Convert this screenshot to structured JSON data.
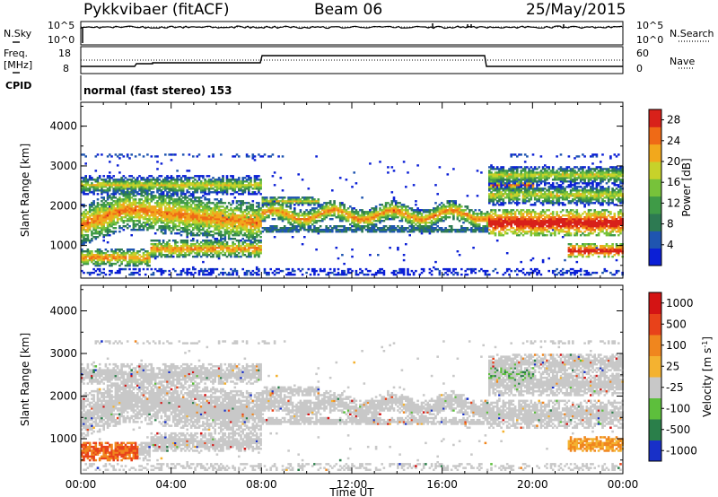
{
  "header": {
    "radar": "Pykkvibaer (fitACF)",
    "beam": "Beam 06",
    "date": "25/May/2015"
  },
  "noise_panel": {
    "left_label": "N.Sky",
    "left_ticks": [
      "10^5",
      "10^0"
    ],
    "right_label": "N.Search",
    "right_ticks": [
      "10^5",
      "10^0"
    ]
  },
  "freq_panel": {
    "left_label_line1": "Freq.",
    "left_label_line2": "[MHz]",
    "left_ticks": [
      "18",
      "8"
    ],
    "right_label": "Nave",
    "right_ticks": [
      "60",
      "0"
    ]
  },
  "cpid_panel": {
    "label": "CPID",
    "text": "normal (fast stereo) 153"
  },
  "colors": {
    "power_scale": [
      "#0b1fd6",
      "#1f55b0",
      "#2d7a52",
      "#3f9b47",
      "#77c23a",
      "#c7d22a",
      "#f2a81c",
      "#ef6a16",
      "#d8211a"
    ],
    "velocity_scale": [
      "#1830c8",
      "#2a7f4a",
      "#5dbf3c",
      "#c8c8c8",
      "#f4b230",
      "#f0861e",
      "#e8421a",
      "#d41414"
    ]
  },
  "chart_data": [
    {
      "type": "heatmap",
      "title": "Power",
      "xlabel": "",
      "ylabel": "Slant Range [km]",
      "x_ticks": [
        "00:00",
        "04:00",
        "08:00",
        "12:00",
        "16:00",
        "20:00",
        "00:00"
      ],
      "y_ticks": [
        1000,
        2000,
        3000,
        4000
      ],
      "ylim": [
        180,
        4600
      ],
      "colorbar": {
        "label": "Power [dB]",
        "ticks": [
          4,
          8,
          12,
          16,
          20,
          24,
          28
        ],
        "range": [
          0,
          30
        ]
      }
    },
    {
      "type": "heatmap",
      "title": "Velocity",
      "xlabel": "Time UT",
      "ylabel": "Slant Range [km]",
      "x_ticks": [
        "00:00",
        "04:00",
        "08:00",
        "12:00",
        "16:00",
        "20:00",
        "00:00"
      ],
      "y_ticks": [
        1000,
        2000,
        3000,
        4000
      ],
      "ylim": [
        180,
        4600
      ],
      "colorbar": {
        "label": "Velocity [m s^-1]",
        "ticks": [
          "1000",
          "500",
          "100",
          "25",
          "-25",
          "-100",
          "-500",
          "-1000"
        ]
      }
    }
  ]
}
